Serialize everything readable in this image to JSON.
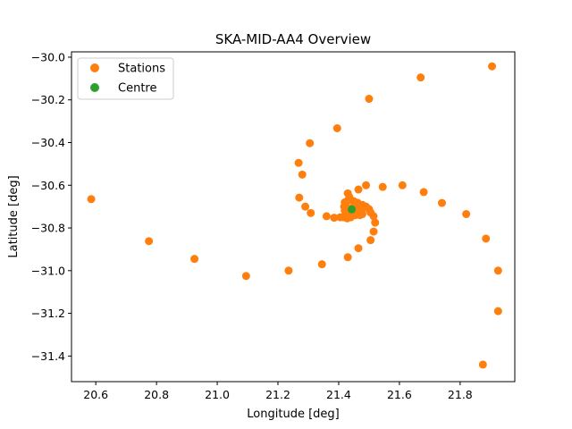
{
  "chart_data": {
    "type": "scatter",
    "title": "SKA-MID-AA4 Overview",
    "xlabel": "Longitude [deg]",
    "ylabel": "Latitude [deg]",
    "xlim": [
      20.52,
      21.98
    ],
    "ylim": [
      -31.52,
      -29.975
    ],
    "xticks": [
      20.6,
      20.8,
      21.0,
      21.2,
      21.4,
      21.6,
      21.8
    ],
    "yticks": [
      -30.0,
      -30.2,
      -30.4,
      -30.6,
      -30.8,
      -31.0,
      -31.2,
      -31.4
    ],
    "grid": false,
    "legend_position": "top-left",
    "series": [
      {
        "name": "Stations",
        "color": "#ff7f0e",
        "points": [
          [
            20.585,
            -30.665
          ],
          [
            20.775,
            -30.862
          ],
          [
            20.925,
            -30.945
          ],
          [
            21.095,
            -31.025
          ],
          [
            21.235,
            -31.0
          ],
          [
            21.345,
            -30.97
          ],
          [
            21.43,
            -30.937
          ],
          [
            21.465,
            -30.895
          ],
          [
            21.505,
            -30.857
          ],
          [
            21.515,
            -30.817
          ],
          [
            21.52,
            -30.775
          ],
          [
            21.515,
            -30.745
          ],
          [
            21.505,
            -30.728
          ],
          [
            21.5,
            -30.712
          ],
          [
            21.49,
            -30.7
          ],
          [
            21.478,
            -30.692
          ],
          [
            21.462,
            -30.682
          ],
          [
            21.45,
            -30.675
          ],
          [
            21.44,
            -30.67
          ],
          [
            21.43,
            -30.672
          ],
          [
            21.42,
            -30.68
          ],
          [
            21.418,
            -30.7
          ],
          [
            21.42,
            -30.718
          ],
          [
            21.43,
            -30.73
          ],
          [
            21.44,
            -30.735
          ],
          [
            21.45,
            -30.73
          ],
          [
            21.46,
            -30.72
          ],
          [
            21.468,
            -30.705
          ],
          [
            21.475,
            -30.722
          ],
          [
            21.478,
            -30.735
          ],
          [
            21.47,
            -30.74
          ],
          [
            21.455,
            -30.74
          ],
          [
            21.44,
            -30.75
          ],
          [
            21.428,
            -30.755
          ],
          [
            21.415,
            -30.75
          ],
          [
            21.405,
            -30.75
          ],
          [
            21.385,
            -30.752
          ],
          [
            21.36,
            -30.745
          ],
          [
            21.435,
            -30.655
          ],
          [
            21.43,
            -30.638
          ],
          [
            21.425,
            -30.7
          ],
          [
            21.44,
            -30.71
          ],
          [
            21.452,
            -30.695
          ],
          [
            21.308,
            -30.73
          ],
          [
            21.29,
            -30.7
          ],
          [
            21.27,
            -30.658
          ],
          [
            21.28,
            -30.55
          ],
          [
            21.268,
            -30.495
          ],
          [
            21.305,
            -30.403
          ],
          [
            21.395,
            -30.333
          ],
          [
            21.5,
            -30.195
          ],
          [
            21.67,
            -30.095
          ],
          [
            21.905,
            -30.043
          ],
          [
            21.49,
            -30.6
          ],
          [
            21.465,
            -30.62
          ],
          [
            21.545,
            -30.608
          ],
          [
            21.61,
            -30.6
          ],
          [
            21.68,
            -30.632
          ],
          [
            21.74,
            -30.683
          ],
          [
            21.82,
            -30.735
          ],
          [
            21.885,
            -30.85
          ],
          [
            21.925,
            -31.0
          ],
          [
            21.925,
            -31.19
          ],
          [
            21.875,
            -31.44
          ]
        ]
      },
      {
        "name": "Centre",
        "color": "#2ca02c",
        "points": [
          [
            21.443,
            -30.713
          ]
        ]
      }
    ]
  }
}
